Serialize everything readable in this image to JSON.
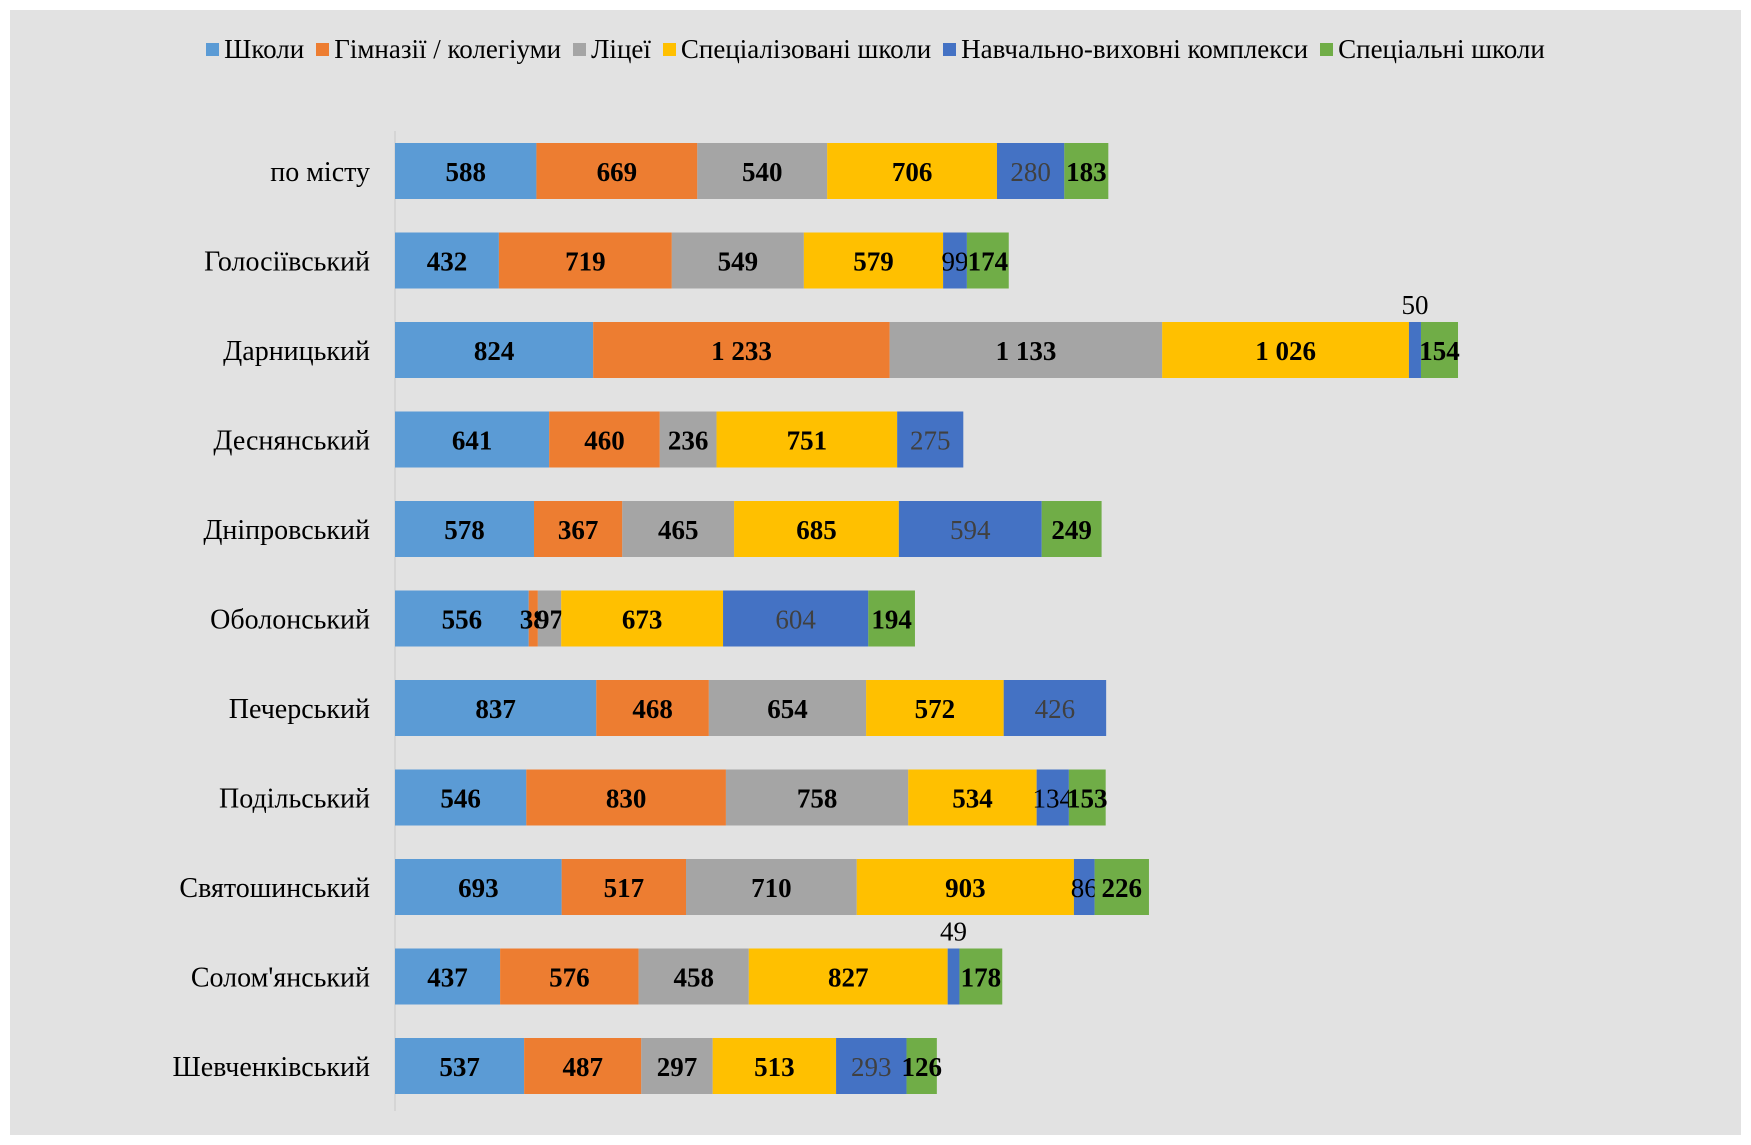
{
  "chart_data": {
    "type": "bar",
    "orientation": "horizontal",
    "stacked": true,
    "title": "",
    "xlabel": "",
    "ylabel": "",
    "grid": false,
    "legend_position": "top",
    "categories": [
      "по місту",
      "Голосіївський",
      "Дарницький",
      "Деснянський",
      "Дніпровський",
      "Оболонський",
      "Печерський",
      "Подільський",
      "Святошинський",
      "Солом'янський",
      "Шевченківський"
    ],
    "series": [
      {
        "name": "Школи",
        "color": "#5b9bd5",
        "label_bold": true,
        "values": [
          588,
          432,
          824,
          641,
          578,
          556,
          837,
          546,
          693,
          437,
          537
        ],
        "labels": [
          "588",
          "432",
          "824",
          "641",
          "578",
          "556",
          "837",
          "546",
          "693",
          "437",
          "537"
        ]
      },
      {
        "name": "Гімназії / колегіуми",
        "color": "#ed7d31",
        "label_bold": true,
        "values": [
          669,
          719,
          1233,
          460,
          367,
          38,
          468,
          830,
          517,
          576,
          487
        ],
        "labels": [
          "669",
          "719",
          "1 233",
          "460",
          "367",
          "38",
          "468",
          "830",
          "517",
          "576",
          "487"
        ]
      },
      {
        "name": "Ліцеї",
        "color": "#a5a5a5",
        "label_bold": true,
        "values": [
          540,
          549,
          1133,
          236,
          465,
          97,
          654,
          758,
          710,
          458,
          297
        ],
        "labels": [
          "540",
          "549",
          "1 133",
          "236",
          "465",
          "97",
          "654",
          "758",
          "710",
          "458",
          "297"
        ]
      },
      {
        "name": "Спеціалізовані школи",
        "color": "#ffc000",
        "label_bold": true,
        "values": [
          706,
          579,
          1026,
          751,
          685,
          673,
          572,
          534,
          903,
          827,
          513
        ],
        "labels": [
          "706",
          "579",
          "1 026",
          "751",
          "685",
          "673",
          "572",
          "534",
          "903",
          "827",
          "513"
        ]
      },
      {
        "name": "Навчально-виховні комплекси",
        "color": "#4472c4",
        "label_bold": false,
        "values": [
          280,
          99,
          50,
          275,
          594,
          604,
          426,
          134,
          86,
          49,
          293
        ],
        "labels": [
          "280",
          "99",
          "50",
          "275",
          "594",
          "604",
          "426",
          "134",
          "86",
          "49",
          "293"
        ]
      },
      {
        "name": "Спеціальні школи",
        "color": "#70ad47",
        "label_bold": true,
        "values": [
          183,
          174,
          154,
          0,
          249,
          194,
          0,
          153,
          226,
          178,
          126
        ],
        "labels": [
          "183",
          "174",
          "154",
          "",
          "249",
          "194",
          "",
          "153",
          "226",
          "178",
          "126"
        ]
      }
    ]
  }
}
